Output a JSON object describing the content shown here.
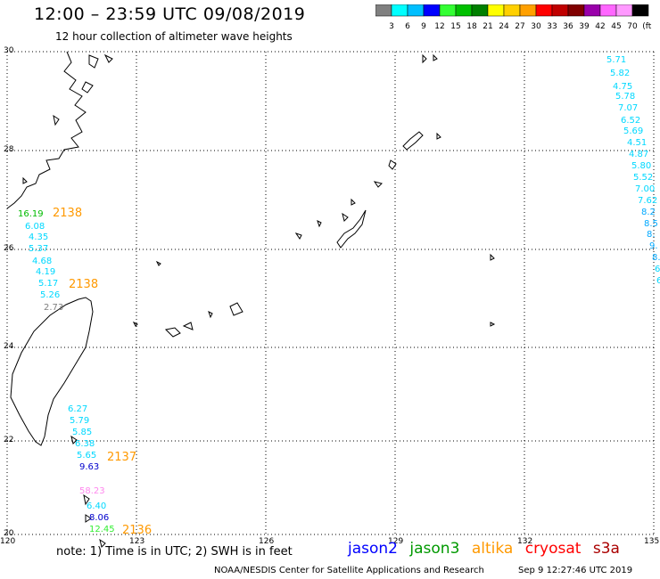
{
  "title": "12:00 – 23:59 UTC 09/08/2019",
  "subtitle": "12 hour collection of altimeter wave heights",
  "colorbar": {
    "colors": [
      "#808080",
      "#00ffff",
      "#00bfff",
      "#0000ff",
      "#33ff33",
      "#00c000",
      "#008000",
      "#ffff00",
      "#ffd000",
      "#ffa000",
      "#ff0000",
      "#c00000",
      "#800000",
      "#9900aa",
      "#ff66ff",
      "#ff99ff",
      "#000000"
    ],
    "labels": [
      "3",
      "6",
      "9",
      "12",
      "15",
      "18",
      "21",
      "24",
      "27",
      "30",
      "33",
      "36",
      "39",
      "42",
      "45",
      "70",
      "(ft)"
    ]
  },
  "axes": {
    "lat_labels": [
      "30",
      "28",
      "26",
      "24",
      "22",
      "20"
    ],
    "lon_labels": [
      "120",
      "123",
      "126",
      "129",
      "132",
      "135"
    ]
  },
  "wave_heights": [
    {
      "v": "5.71",
      "c": "#00d8ff"
    },
    {
      "v": "5.82",
      "c": "#00d8ff"
    },
    {
      "v": "4.75",
      "c": "#00d8ff"
    },
    {
      "v": "5.78",
      "c": "#00d8ff"
    },
    {
      "v": "7.07",
      "c": "#00d8ff"
    },
    {
      "v": "6.52",
      "c": "#00d8ff"
    },
    {
      "v": "5.69",
      "c": "#00d8ff"
    },
    {
      "v": "4.51",
      "c": "#00d8ff"
    },
    {
      "v": "4.87",
      "c": "#00d8ff"
    },
    {
      "v": "5.80",
      "c": "#00d8ff"
    },
    {
      "v": "5.52",
      "c": "#00d8ff"
    },
    {
      "v": "7.00",
      "c": "#00d8ff"
    },
    {
      "v": "7.62",
      "c": "#00d8ff"
    },
    {
      "v": "8.2",
      "c": "#00a8ff"
    },
    {
      "v": "8.5",
      "c": "#00a8ff"
    },
    {
      "v": "8.",
      "c": "#00a8ff"
    },
    {
      "v": "9.",
      "c": "#00a8ff"
    },
    {
      "v": "8.",
      "c": "#00a8ff"
    },
    {
      "v": "6",
      "c": "#00d8ff"
    },
    {
      "v": "6",
      "c": "#00d8ff"
    },
    {
      "v": "16.19",
      "c": "#00bb00"
    },
    {
      "v": "6.08",
      "c": "#00d8ff"
    },
    {
      "v": "4.35",
      "c": "#00d8ff"
    },
    {
      "v": "5.37",
      "c": "#00d8ff"
    },
    {
      "v": "4.68",
      "c": "#00d8ff"
    },
    {
      "v": "4.19",
      "c": "#00d8ff"
    },
    {
      "v": "5.17",
      "c": "#00d8ff"
    },
    {
      "v": "5.26",
      "c": "#00d8ff"
    },
    {
      "v": "2.73",
      "c": "#808080"
    },
    {
      "v": "6.27",
      "c": "#00d8ff"
    },
    {
      "v": "5.79",
      "c": "#00d8ff"
    },
    {
      "v": "5.85",
      "c": "#00d8ff"
    },
    {
      "v": "6.38",
      "c": "#00d8ff"
    },
    {
      "v": "5.65",
      "c": "#00d8ff"
    },
    {
      "v": "9.63",
      "c": "#0000cc"
    },
    {
      "v": "58.23",
      "c": "#ff88ee"
    },
    {
      "v": "6.40",
      "c": "#00d8ff"
    },
    {
      "v": "8.06",
      "c": "#0000cc"
    },
    {
      "v": "12.45",
      "c": "#33ee33"
    }
  ],
  "pass_times": [
    {
      "v": "2138",
      "c": "#ff9900"
    },
    {
      "v": "2138",
      "c": "#ff9900"
    },
    {
      "v": "2137",
      "c": "#ff9900"
    },
    {
      "v": "2136",
      "c": "#ff9900"
    }
  ],
  "note": "note:  1) Time is in UTC;  2) SWH is in feet",
  "satellites": [
    {
      "name": "jason2",
      "color": "#0000ff"
    },
    {
      "name": "jason3",
      "color": "#009900"
    },
    {
      "name": "altika",
      "color": "#ff9900"
    },
    {
      "name": "cryosat",
      "color": "#ff0000"
    },
    {
      "name": "s3a",
      "color": "#aa0000"
    }
  ],
  "credit": "NOAA/NESDIS Center for Satellite Applications and Research",
  "credit_time": "Sep  9 12:27:46 UTC 2019"
}
